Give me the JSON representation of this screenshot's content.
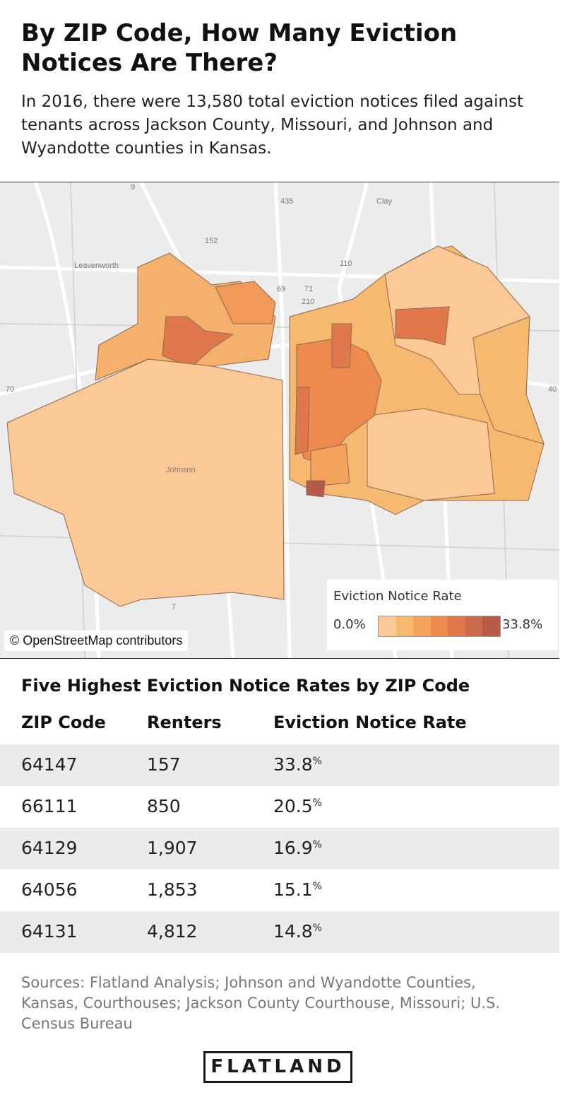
{
  "header": {
    "title": "By ZIP Code, How Many Eviction Notices Are There?",
    "subtitle": "In 2016, there were 13,580 total eviction notices filed against tenants across Jackson County, Missouri, and Johnson and Wyandotte counties in Kansas."
  },
  "map": {
    "credit": "© OpenStreetMap contributors",
    "place_labels": [
      "Leavenworth",
      "Clay",
      "Johnson"
    ],
    "route_labels": [
      "152",
      "435",
      "110",
      "69",
      "71",
      "210",
      "70",
      "40",
      "7",
      "9"
    ],
    "legend": {
      "title": "Eviction Notice Rate",
      "min": "0.0%",
      "max": "33.8%",
      "colors": [
        "#fcc895",
        "#f7b970",
        "#f4a35c",
        "#ee8a4e",
        "#e0784c",
        "#cc6a4c",
        "#b65b49"
      ]
    }
  },
  "table": {
    "title": "Five Highest Eviction Notice Rates by ZIP Code",
    "headers": [
      "ZIP Code",
      "Renters",
      "Eviction Notice Rate"
    ],
    "rows": [
      {
        "zip": "64147",
        "renters": "157",
        "rate": "33.8",
        "unit": "%"
      },
      {
        "zip": "66111",
        "renters": "850",
        "rate": "20.5",
        "unit": "%"
      },
      {
        "zip": "64129",
        "renters": "1,907",
        "rate": "16.9",
        "unit": "%"
      },
      {
        "zip": "64056",
        "renters": "1,853",
        "rate": "15.1",
        "unit": "%"
      },
      {
        "zip": "64131",
        "renters": "4,812",
        "rate": "14.8",
        "unit": "%"
      }
    ]
  },
  "footer": {
    "sources": "Sources: Flatland Analysis; Johnson and Wyandotte Counties, Kansas, Courthouses; Jackson County Courthouse, Missouri; U.S. Census Bureau",
    "logo": "FLATLAND"
  }
}
